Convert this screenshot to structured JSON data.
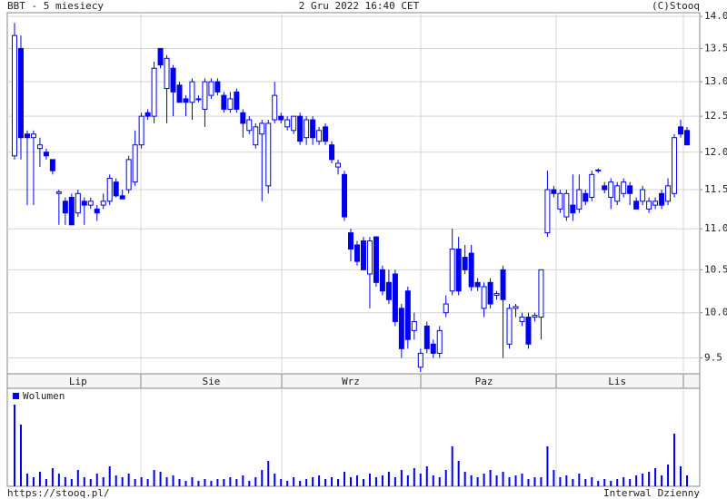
{
  "chart_data": {
    "type": "candlestick",
    "title": "BBT - 5 miesiecy",
    "date": "2 Gru 2022 16:40 CET",
    "source": "(C)Stooq",
    "url": "https://stooq.pl/",
    "interval": "Interwal Dzienny",
    "volume_name": "Wolumen",
    "color": "#0000ee",
    "log_scale": true,
    "grid": true,
    "categories": [
      null,
      null,
      null,
      null,
      null,
      null,
      null,
      null,
      null,
      null,
      "Lip",
      null,
      null,
      null,
      null,
      null,
      null,
      null,
      null,
      null,
      null,
      null,
      null,
      null,
      null,
      null,
      null,
      null,
      null,
      null,
      null,
      "Sie",
      null,
      null,
      null,
      null,
      null,
      null,
      null,
      null,
      null,
      null,
      null,
      null,
      null,
      null,
      null,
      null,
      null,
      null,
      null,
      null,
      null,
      "Wrz",
      null,
      null,
      null,
      null,
      null,
      null,
      null,
      null,
      null,
      null,
      null,
      null,
      null,
      null,
      null,
      null,
      null,
      null,
      null,
      null,
      "Paz",
      null,
      null,
      null,
      null,
      null,
      null,
      null,
      null,
      null,
      null,
      null,
      null,
      null,
      null,
      null,
      null,
      null,
      null,
      null,
      null,
      "Lis",
      null,
      null,
      null,
      null,
      null,
      null,
      null,
      null,
      null,
      null,
      null
    ],
    "open": [
      11.95,
      13.5,
      12.25,
      12.2,
      12.05,
      12.0,
      11.9,
      11.45,
      11.35,
      11.4,
      11.2,
      11.35,
      11.3,
      11.25,
      11.3,
      11.35,
      11.6,
      11.42,
      11.5,
      11.6,
      12.1,
      12.55,
      12.5,
      13.5,
      12.9,
      13.2,
      12.95,
      12.75,
      12.7,
      12.75,
      12.6,
      12.8,
      13.0,
      12.8,
      12.6,
      12.85,
      12.55,
      12.3,
      12.1,
      12.25,
      11.55,
      12.45,
      12.5,
      12.35,
      12.3,
      12.5,
      12.2,
      12.45,
      12.15,
      12.35,
      12.1,
      11.8,
      11.7,
      10.95,
      10.8,
      10.85,
      10.45,
      10.9,
      10.5,
      10.35,
      10.45,
      10.05,
      10.25,
      9.8,
      9.4,
      9.85,
      9.65,
      9.55,
      10.0,
      10.25,
      10.75,
      10.65,
      10.7,
      10.35,
      10.05,
      10.35,
      10.2,
      10.5,
      9.65,
      10.05,
      9.9,
      9.95,
      9.95,
      9.95,
      10.95,
      11.5,
      11.25,
      11.15,
      11.3,
      11.25,
      11.45,
      11.4,
      11.75,
      11.55,
      11.4,
      11.35,
      11.45,
      11.55,
      11.35,
      11.35,
      11.25,
      11.3,
      11.45,
      11.35,
      11.45,
      12.35,
      12.3
    ],
    "high": [
      13.9,
      13.7,
      12.3,
      12.3,
      12.2,
      12.05,
      11.9,
      11.5,
      11.4,
      11.45,
      11.5,
      11.4,
      11.4,
      11.3,
      11.45,
      11.7,
      11.65,
      11.5,
      11.95,
      12.3,
      12.55,
      12.6,
      13.3,
      13.5,
      13.4,
      13.25,
      13.0,
      12.8,
      13.05,
      12.8,
      13.05,
      13.05,
      13.05,
      12.85,
      12.85,
      12.9,
      12.6,
      12.5,
      12.4,
      12.45,
      12.45,
      13.0,
      12.55,
      12.5,
      12.5,
      12.55,
      12.5,
      12.5,
      12.35,
      12.4,
      12.15,
      11.9,
      11.75,
      11.0,
      10.85,
      10.9,
      10.9,
      10.9,
      10.55,
      10.5,
      10.5,
      10.1,
      10.3,
      10.0,
      9.6,
      9.9,
      9.7,
      9.85,
      10.2,
      11.0,
      10.9,
      10.8,
      10.8,
      10.4,
      10.35,
      10.4,
      10.25,
      10.55,
      10.1,
      10.1,
      10.0,
      10.0,
      10.0,
      10.5,
      11.75,
      11.55,
      11.5,
      11.5,
      11.7,
      11.7,
      11.5,
      11.75,
      11.78,
      11.6,
      11.65,
      11.6,
      11.65,
      11.6,
      11.4,
      11.55,
      11.4,
      11.4,
      11.5,
      11.65,
      12.25,
      12.45,
      12.35
    ],
    "low": [
      11.9,
      11.9,
      11.3,
      11.3,
      11.8,
      11.9,
      11.7,
      11.05,
      11.05,
      11.05,
      11.15,
      11.05,
      11.25,
      11.1,
      11.25,
      11.3,
      11.4,
      11.38,
      11.45,
      11.55,
      12.05,
      12.45,
      12.4,
      13.2,
      12.4,
      12.5,
      12.7,
      12.5,
      12.45,
      12.7,
      12.35,
      12.75,
      12.8,
      12.55,
      12.55,
      12.55,
      12.2,
      12.25,
      12.05,
      11.35,
      11.45,
      12.4,
      12.4,
      12.3,
      12.25,
      12.1,
      12.1,
      12.1,
      12.1,
      12.1,
      11.85,
      11.7,
      11.1,
      10.6,
      10.55,
      10.5,
      10.05,
      10.3,
      10.2,
      10.1,
      9.85,
      9.5,
      9.6,
      9.7,
      9.35,
      9.55,
      9.5,
      9.5,
      9.95,
      10.2,
      10.2,
      10.45,
      10.25,
      10.25,
      9.95,
      10.05,
      10.15,
      9.5,
      9.6,
      9.95,
      9.85,
      9.6,
      9.9,
      9.7,
      10.9,
      11.4,
      11.2,
      11.1,
      11.1,
      11.2,
      11.3,
      11.35,
      11.72,
      11.45,
      11.25,
      11.3,
      11.4,
      11.3,
      11.25,
      11.3,
      11.2,
      11.25,
      11.25,
      11.3,
      11.4,
      12.2,
      12.1
    ],
    "close": [
      13.7,
      12.2,
      12.2,
      12.25,
      12.1,
      11.95,
      11.75,
      11.47,
      11.2,
      11.05,
      11.45,
      11.3,
      11.35,
      11.2,
      11.35,
      11.65,
      11.42,
      11.38,
      11.9,
      12.1,
      12.5,
      12.5,
      13.2,
      13.25,
      13.35,
      12.85,
      12.7,
      12.7,
      13.0,
      12.74,
      13.0,
      13.0,
      12.85,
      12.6,
      12.75,
      12.6,
      12.4,
      12.45,
      12.35,
      12.4,
      12.4,
      12.8,
      12.45,
      12.45,
      12.5,
      12.15,
      12.45,
      12.2,
      12.3,
      12.15,
      11.9,
      11.85,
      11.15,
      10.75,
      10.6,
      10.5,
      10.85,
      10.35,
      10.25,
      10.15,
      9.9,
      9.6,
      9.7,
      9.9,
      9.55,
      9.6,
      9.55,
      9.8,
      10.1,
      10.75,
      10.25,
      10.5,
      10.3,
      10.3,
      10.3,
      10.1,
      10.22,
      10.15,
      10.05,
      10.07,
      9.95,
      9.65,
      9.97,
      10.5,
      11.5,
      11.45,
      11.45,
      11.45,
      11.2,
      11.5,
      11.35,
      11.7,
      11.76,
      11.5,
      11.6,
      11.55,
      11.6,
      11.45,
      11.25,
      11.5,
      11.35,
      11.35,
      11.3,
      11.55,
      12.2,
      12.25,
      12.1
    ],
    "volume": [
      90,
      68,
      14,
      10,
      16,
      8,
      20,
      14,
      10,
      8,
      18,
      10,
      8,
      14,
      10,
      22,
      12,
      10,
      14,
      8,
      10,
      8,
      18,
      16,
      10,
      12,
      8,
      6,
      10,
      6,
      8,
      6,
      8,
      8,
      10,
      8,
      12,
      6,
      10,
      18,
      28,
      14,
      8,
      6,
      10,
      6,
      8,
      10,
      12,
      8,
      10,
      8,
      16,
      10,
      12,
      8,
      14,
      10,
      12,
      16,
      10,
      18,
      12,
      20,
      14,
      22,
      12,
      10,
      18,
      44,
      28,
      16,
      12,
      10,
      14,
      18,
      12,
      16,
      10,
      12,
      14,
      8,
      10,
      10,
      44,
      18,
      10,
      12,
      8,
      14,
      8,
      10,
      6,
      8,
      6,
      8,
      10,
      8,
      12,
      14,
      16,
      20,
      12,
      24,
      58,
      22,
      12
    ],
    "ylim": [
      9.33,
      14.06
    ],
    "yticks": [
      9.5,
      {
        "value": 10,
        "label": "10.0"
      },
      10.5,
      {
        "value": 11,
        "label": "11.0"
      },
      11.5,
      {
        "value": 12,
        "label": "12.0"
      },
      12.5,
      {
        "value": 13,
        "label": "13.0"
      },
      13.5,
      {
        "value": 14,
        "label": "14.0"
      }
    ]
  }
}
